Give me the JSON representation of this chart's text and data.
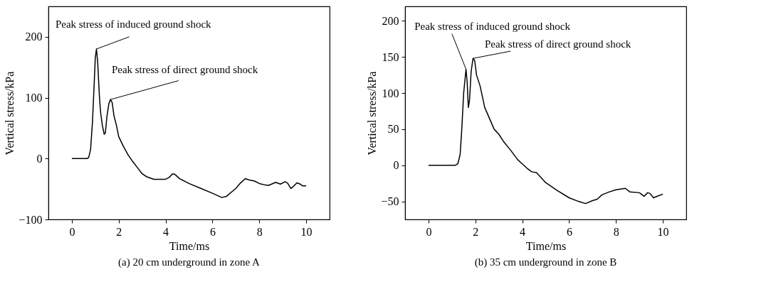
{
  "chart_data": [
    {
      "type": "line",
      "title": "(a) 20 cm underground in zone A",
      "xlabel": "Time/ms",
      "ylabel": "Vertical stress/kPa",
      "xlim": [
        -1,
        11
      ],
      "xticks": [
        0,
        2,
        4,
        6,
        8,
        10
      ],
      "ylim": [
        -100,
        250
      ],
      "yticks": [
        -100,
        0,
        100,
        200
      ],
      "grid": false,
      "legend": false,
      "marker": "none",
      "line_style": "solid",
      "series": [
        {
          "color": "#000000",
          "x": [
            0,
            0.65,
            0.72,
            0.8,
            0.88,
            0.95,
            1.0,
            1.05,
            1.1,
            1.18,
            1.23,
            1.3,
            1.38,
            1.43,
            1.5,
            1.58,
            1.65,
            1.72,
            1.8,
            1.9,
            2.0,
            2.2,
            2.4,
            2.6,
            2.8,
            3.0,
            3.2,
            3.5,
            4.0,
            4.15,
            4.3,
            4.4,
            4.6,
            5.0,
            5.5,
            6.0,
            6.4,
            6.6,
            7.0,
            7.2,
            7.4,
            7.55,
            7.8,
            8.0,
            8.2,
            8.4,
            8.7,
            8.9,
            9.1,
            9.2,
            9.35,
            9.45,
            9.6,
            9.75,
            9.85,
            10
          ],
          "values": [
            0,
            0,
            2,
            15,
            60,
            120,
            165,
            180,
            160,
            100,
            75,
            55,
            40,
            42,
            70,
            90,
            97,
            92,
            70,
            55,
            36,
            20,
            6,
            -5,
            -15,
            -25,
            -30,
            -34,
            -34,
            -31,
            -25,
            -26,
            -33,
            -41,
            -49,
            -57,
            -64,
            -62,
            -49,
            -40,
            -33,
            -35,
            -37,
            -41,
            -43,
            -44,
            -39,
            -42,
            -38,
            -40,
            -49,
            -46,
            -40,
            -42,
            -45,
            -45
          ]
        }
      ],
      "annotations": [
        {
          "text": "Peak stress of induced ground shock",
          "x": 1.05,
          "y": 180
        },
        {
          "text": "Peak stress of direct ground shock",
          "x": 1.65,
          "y": 97
        }
      ]
    },
    {
      "type": "line",
      "title": "(b) 35 cm underground in zone B",
      "xlabel": "Time/ms",
      "ylabel": "Vertical stress/kPa",
      "xlim": [
        -1,
        11
      ],
      "xticks": [
        0,
        2,
        4,
        6,
        8,
        10
      ],
      "ylim": [
        -75,
        220
      ],
      "yticks": [
        -50,
        0,
        50,
        100,
        150,
        200
      ],
      "grid": false,
      "legend": false,
      "marker": "none",
      "line_style": "solid",
      "series": [
        {
          "color": "#000000",
          "x": [
            0,
            1.15,
            1.25,
            1.35,
            1.42,
            1.5,
            1.6,
            1.65,
            1.7,
            1.75,
            1.82,
            1.9,
            1.97,
            2.05,
            2.2,
            2.4,
            2.6,
            2.8,
            3.0,
            3.2,
            3.5,
            3.8,
            4.0,
            4.2,
            4.4,
            4.6,
            4.8,
            5.0,
            5.5,
            6.0,
            6.4,
            6.7,
            7.0,
            7.2,
            7.4,
            7.7,
            8.0,
            8.4,
            8.6,
            9.0,
            9.2,
            9.35,
            9.45,
            9.6,
            9.75,
            10
          ],
          "values": [
            0,
            0,
            2,
            15,
            50,
            100,
            133,
            115,
            80,
            90,
            130,
            148,
            145,
            125,
            110,
            80,
            65,
            50,
            43,
            33,
            21,
            8,
            2,
            -4,
            -9,
            -10,
            -17,
            -24,
            -35,
            -45,
            -50,
            -53,
            -49,
            -47,
            -41,
            -37,
            -34,
            -32,
            -37,
            -38,
            -43,
            -38,
            -39,
            -45,
            -43,
            -40
          ]
        }
      ],
      "annotations": [
        {
          "text": "Peak stress of induced ground shock",
          "x": 1.6,
          "y": 133
        },
        {
          "text": "Peak stress of direct ground shock",
          "x": 1.9,
          "y": 148
        }
      ]
    }
  ]
}
